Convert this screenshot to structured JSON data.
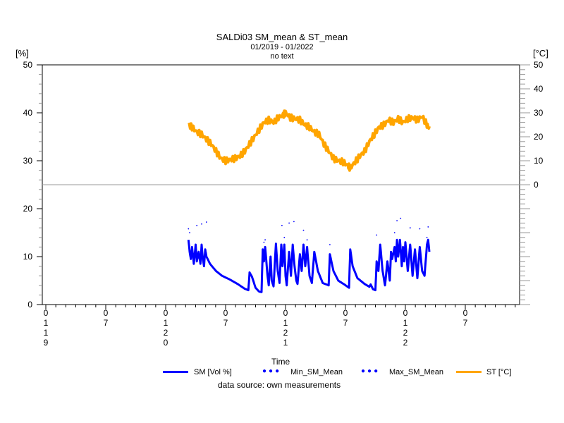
{
  "chart_data": {
    "type": "line",
    "title": "SALDi03 SM_mean & ST_mean",
    "subtitle": "01/2019 - 01/2022",
    "subtitle2": "no text",
    "xlabel": "Time",
    "ylabel_left": "[%]",
    "ylabel_right": "[°C]",
    "source": "data source: own measurements",
    "ylim_left": [
      0,
      50
    ],
    "ylim_right": [
      -50,
      50
    ],
    "left_ticks": [
      "0",
      "10",
      "20",
      "30",
      "40",
      "50"
    ],
    "right_ticks": [
      "0",
      "10",
      "20",
      "30",
      "40",
      "50"
    ],
    "xlim": [
      2019.0,
      2023.0
    ],
    "x_ticks": [
      {
        "x": 2019.0,
        "label": [
          "0",
          "1",
          "1",
          "9"
        ]
      },
      {
        "x": 2019.5,
        "label": [
          "0",
          "7"
        ]
      },
      {
        "x": 2020.0,
        "label": [
          "0",
          "1",
          "2",
          "0"
        ]
      },
      {
        "x": 2020.5,
        "label": [
          "0",
          "7"
        ]
      },
      {
        "x": 2021.0,
        "label": [
          "0",
          "1",
          "2",
          "1"
        ]
      },
      {
        "x": 2021.5,
        "label": [
          "0",
          "7"
        ]
      },
      {
        "x": 2022.0,
        "label": [
          "0",
          "1",
          "2",
          "2"
        ]
      },
      {
        "x": 2022.5,
        "label": [
          "0",
          "7"
        ]
      }
    ],
    "legend": [
      {
        "label": "SM [Vol %]",
        "style": "line",
        "color": "#0000ff"
      },
      {
        "label": "Min_SM_Mean",
        "style": "dots",
        "color": "#0000ff"
      },
      {
        "label": "Max_SM_Mean",
        "style": "dots",
        "color": "#0000ff"
      },
      {
        "label": "ST [°C]",
        "style": "line",
        "color": "#ffa500"
      }
    ],
    "series": [
      {
        "name": "SM [Vol %]",
        "axis": "left",
        "color": "#0000ff",
        "points": [
          [
            2020.19,
            13.5
          ],
          [
            2020.2,
            11
          ],
          [
            2020.21,
            9.5
          ],
          [
            2020.22,
            12
          ],
          [
            2020.235,
            8.5
          ],
          [
            2020.25,
            12.5
          ],
          [
            2020.26,
            9
          ],
          [
            2020.275,
            11
          ],
          [
            2020.29,
            8.5
          ],
          [
            2020.3,
            12.5
          ],
          [
            2020.31,
            9.5
          ],
          [
            2020.32,
            8
          ],
          [
            2020.33,
            11.5
          ],
          [
            2020.34,
            10
          ],
          [
            2020.37,
            8.5
          ],
          [
            2020.42,
            7
          ],
          [
            2020.47,
            6
          ],
          [
            2020.53,
            5.3
          ],
          [
            2020.6,
            4.3
          ],
          [
            2020.66,
            3.3
          ],
          [
            2020.69,
            3
          ],
          [
            2020.7,
            6.7
          ],
          [
            2020.72,
            5.8
          ],
          [
            2020.75,
            3.5
          ],
          [
            2020.78,
            2.7
          ],
          [
            2020.8,
            2.6
          ],
          [
            2020.81,
            11.5
          ],
          [
            2020.82,
            9
          ],
          [
            2020.83,
            12
          ],
          [
            2020.85,
            6
          ],
          [
            2020.86,
            4
          ],
          [
            2020.875,
            10
          ],
          [
            2020.885,
            5
          ],
          [
            2020.9,
            3.8
          ],
          [
            2020.92,
            12.7
          ],
          [
            2020.935,
            7
          ],
          [
            2020.95,
            4.5
          ],
          [
            2020.965,
            12.5
          ],
          [
            2020.975,
            8
          ],
          [
            2020.99,
            12.5
          ],
          [
            2021.0,
            6
          ],
          [
            2021.01,
            4
          ],
          [
            2021.03,
            11
          ],
          [
            2021.045,
            6
          ],
          [
            2021.06,
            12.5
          ],
          [
            2021.075,
            8
          ],
          [
            2021.09,
            5
          ],
          [
            2021.1,
            4.3
          ],
          [
            2021.12,
            10.5
          ],
          [
            2021.135,
            7
          ],
          [
            2021.15,
            12.5
          ],
          [
            2021.165,
            8
          ],
          [
            2021.18,
            12
          ],
          [
            2021.2,
            6
          ],
          [
            2021.22,
            4.5
          ],
          [
            2021.24,
            11
          ],
          [
            2021.27,
            7
          ],
          [
            2021.31,
            4.5
          ],
          [
            2021.36,
            4
          ],
          [
            2021.37,
            10.5
          ],
          [
            2021.4,
            7
          ],
          [
            2021.44,
            5
          ],
          [
            2021.49,
            4.2
          ],
          [
            2021.53,
            3.5
          ],
          [
            2021.54,
            11.5
          ],
          [
            2021.56,
            8
          ],
          [
            2021.6,
            5.5
          ],
          [
            2021.66,
            4.3
          ],
          [
            2021.7,
            3.7
          ],
          [
            2021.71,
            4.2
          ],
          [
            2021.73,
            3.2
          ],
          [
            2021.75,
            3
          ],
          [
            2021.76,
            9
          ],
          [
            2021.775,
            7
          ],
          [
            2021.79,
            12.5
          ],
          [
            2021.81,
            7
          ],
          [
            2021.83,
            4
          ],
          [
            2021.85,
            9
          ],
          [
            2021.87,
            5
          ],
          [
            2021.88,
            11
          ],
          [
            2021.89,
            9.5
          ],
          [
            2021.91,
            12
          ],
          [
            2021.92,
            9
          ],
          [
            2021.93,
            13.5
          ],
          [
            2021.94,
            10
          ],
          [
            2021.955,
            13.5
          ],
          [
            2021.97,
            8
          ],
          [
            2021.98,
            12
          ],
          [
            2021.99,
            9
          ],
          [
            2022.0,
            13
          ],
          [
            2022.02,
            7
          ],
          [
            2022.04,
            12.5
          ],
          [
            2022.06,
            6
          ],
          [
            2022.08,
            11.5
          ],
          [
            2022.1,
            5.5
          ],
          [
            2022.12,
            12
          ],
          [
            2022.14,
            7
          ],
          [
            2022.16,
            6
          ],
          [
            2022.18,
            12.5
          ],
          [
            2022.19,
            13.5
          ],
          [
            2022.2,
            11
          ]
        ]
      },
      {
        "name": "Min_SM_Mean",
        "axis": "left",
        "color": "#0000ff",
        "points": [
          [
            2020.2,
            15
          ],
          [
            2020.26,
            16.5
          ],
          [
            2020.83,
            13.5
          ],
          [
            2020.99,
            14
          ],
          [
            2021.18,
            13.5
          ],
          [
            2021.37,
            12.5
          ],
          [
            2021.91,
            15
          ],
          [
            2022.18,
            14
          ]
        ]
      },
      {
        "name": "Max_SM_Mean",
        "axis": "left",
        "color": "#0000ff",
        "points": [
          [
            2020.19,
            15.8
          ],
          [
            2020.3,
            16.8
          ],
          [
            2020.34,
            17.2
          ],
          [
            2020.82,
            13
          ],
          [
            2020.97,
            16.5
          ],
          [
            2021.03,
            17
          ],
          [
            2021.07,
            17.3
          ],
          [
            2021.15,
            15.5
          ],
          [
            2021.76,
            14.5
          ],
          [
            2021.93,
            17.5
          ],
          [
            2021.96,
            18
          ],
          [
            2022.04,
            16
          ],
          [
            2022.12,
            15.8
          ],
          [
            2022.19,
            16.2
          ]
        ]
      },
      {
        "name": "ST [°C]",
        "axis": "right",
        "color": "#ffa500",
        "points": [
          [
            2020.19,
            25
          ],
          [
            2020.22,
            24
          ],
          [
            2020.26,
            22
          ],
          [
            2020.3,
            21
          ],
          [
            2020.34,
            19
          ],
          [
            2020.38,
            17
          ],
          [
            2020.42,
            14
          ],
          [
            2020.46,
            11
          ],
          [
            2020.5,
            10
          ],
          [
            2020.54,
            10.5
          ],
          [
            2020.58,
            11
          ],
          [
            2020.62,
            12
          ],
          [
            2020.66,
            14
          ],
          [
            2020.7,
            17
          ],
          [
            2020.74,
            20
          ],
          [
            2020.78,
            23
          ],
          [
            2020.82,
            26
          ],
          [
            2020.86,
            27
          ],
          [
            2020.9,
            26
          ],
          [
            2020.94,
            28
          ],
          [
            2020.98,
            29
          ],
          [
            2021.0,
            30
          ],
          [
            2021.04,
            28
          ],
          [
            2021.08,
            27.5
          ],
          [
            2021.12,
            27
          ],
          [
            2021.16,
            25
          ],
          [
            2021.2,
            24
          ],
          [
            2021.24,
            22
          ],
          [
            2021.28,
            21
          ],
          [
            2021.32,
            17
          ],
          [
            2021.36,
            14
          ],
          [
            2021.4,
            11
          ],
          [
            2021.44,
            10
          ],
          [
            2021.48,
            9.5
          ],
          [
            2021.52,
            8
          ],
          [
            2021.54,
            7
          ],
          [
            2021.58,
            9.5
          ],
          [
            2021.62,
            12
          ],
          [
            2021.66,
            14
          ],
          [
            2021.7,
            18
          ],
          [
            2021.74,
            21
          ],
          [
            2021.78,
            24
          ],
          [
            2021.82,
            25
          ],
          [
            2021.86,
            27
          ],
          [
            2021.9,
            26
          ],
          [
            2021.94,
            27.5
          ],
          [
            2021.98,
            26
          ],
          [
            2022.02,
            27.5
          ],
          [
            2022.06,
            28
          ],
          [
            2022.1,
            27
          ],
          [
            2022.14,
            28.5
          ],
          [
            2022.18,
            25
          ],
          [
            2022.2,
            23.5
          ]
        ]
      }
    ]
  }
}
